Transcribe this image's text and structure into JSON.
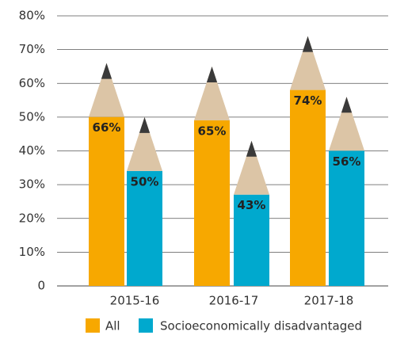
{
  "chart_data": {
    "type": "pencil-bar",
    "categories": [
      "2015-16",
      "2016-17",
      "2017-18"
    ],
    "series": [
      {
        "name": "All",
        "color": "#f7a800",
        "values": [
          66,
          65,
          74
        ],
        "value_labels": [
          "66%",
          "65%",
          "74%"
        ]
      },
      {
        "name": "Socioeconomically disadvantaged",
        "color": "#00a9ce",
        "values": [
          50,
          43,
          56
        ],
        "value_labels": [
          "50%",
          "43%",
          "56%"
        ]
      }
    ],
    "ylim": [
      0,
      80
    ],
    "yticks": [
      0,
      {
        "value": 10,
        "label": "10%"
      },
      {
        "value": 20,
        "label": "20%"
      },
      {
        "value": 30,
        "label": "30%"
      },
      {
        "value": 40,
        "label": "40%"
      },
      {
        "value": 50,
        "label": "50%"
      },
      {
        "value": 60,
        "label": "60%"
      },
      {
        "value": 70,
        "label": "70%"
      },
      {
        "value": 80,
        "label": "80%"
      }
    ],
    "grid": true
  }
}
